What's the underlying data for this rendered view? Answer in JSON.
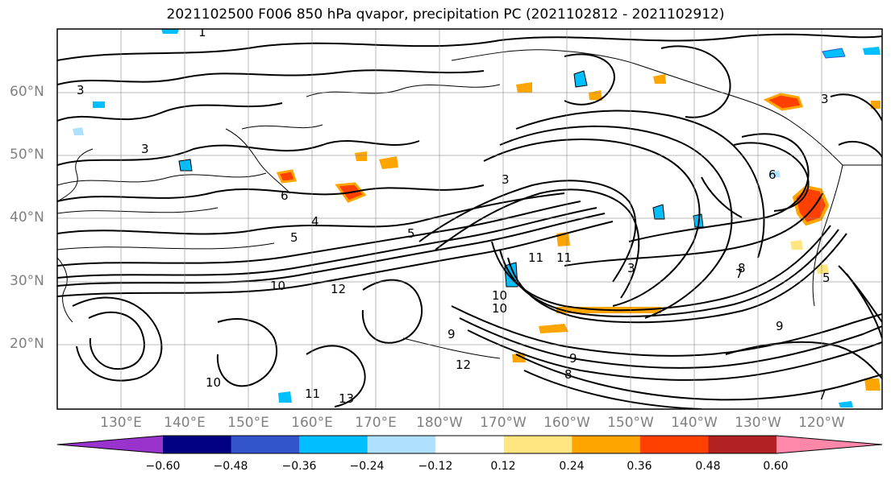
{
  "title": "2021102500 F006 850 hPa qvapor, precipitation PC (2021102812 - 2021102912)",
  "lat_labels": [
    "60°N",
    "50°N",
    "40°N",
    "30°N",
    "20°N"
  ],
  "lon_labels": [
    "130°E",
    "140°E",
    "150°E",
    "160°E",
    "170°E",
    "180°W",
    "170°W",
    "160°W",
    "150°W",
    "140°W",
    "130°W",
    "120°W"
  ],
  "contour_labels": [
    "1",
    "3",
    "3",
    "5",
    "4",
    "5",
    "6",
    "3",
    "3",
    "11",
    "12",
    "10",
    "9",
    "10",
    "8",
    "7",
    "12",
    "11",
    "13",
    "10",
    "9",
    "8",
    "9",
    "7",
    "3",
    "6",
    "5",
    "11",
    "10"
  ],
  "colorbar": {
    "ticks": [
      "−0.60",
      "−0.48",
      "−0.36",
      "−0.24",
      "−0.12",
      "0.12",
      "0.24",
      "0.36",
      "0.48",
      "0.60"
    ],
    "colors": [
      "#9933cc",
      "#000080",
      "#3355cc",
      "#00bfff",
      "#b0e0ff",
      "#ffffff",
      "#ffe680",
      "#ffa500",
      "#ff4000",
      "#b22222",
      "#ff88aa"
    ]
  }
}
